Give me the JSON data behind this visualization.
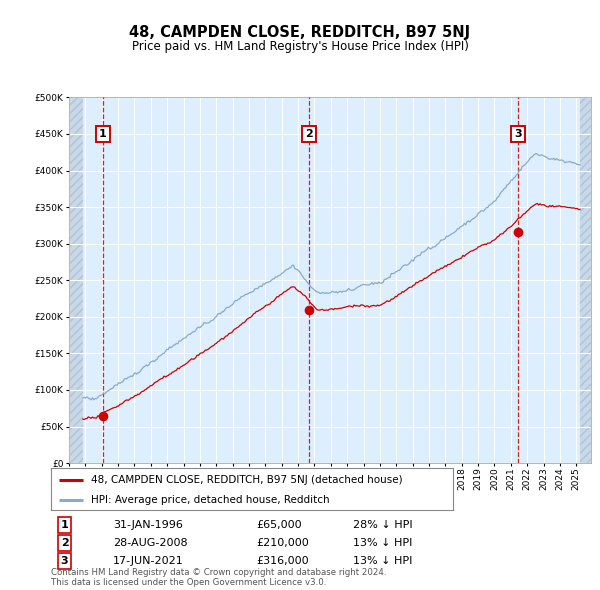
{
  "title": "48, CAMPDEN CLOSE, REDDITCH, B97 5NJ",
  "subtitle": "Price paid vs. HM Land Registry's House Price Index (HPI)",
  "property_label": "48, CAMPDEN CLOSE, REDDITCH, B97 5NJ (detached house)",
  "hpi_label": "HPI: Average price, detached house, Redditch",
  "sale_year_floats": [
    1996.08,
    2008.65,
    2021.46
  ],
  "sale_prices": [
    65000,
    210000,
    316000
  ],
  "sale_labels": [
    "1",
    "2",
    "3"
  ],
  "sale_date_strs": [
    "31-JAN-1996",
    "28-AUG-2008",
    "17-JUN-2021"
  ],
  "sale_price_strs": [
    "£65,000",
    "£210,000",
    "£316,000"
  ],
  "sale_hpi_strs": [
    "28% ↓ HPI",
    "13% ↓ HPI",
    "13% ↓ HPI"
  ],
  "ylim": [
    0,
    500000
  ],
  "yticks": [
    0,
    50000,
    100000,
    150000,
    200000,
    250000,
    300000,
    350000,
    400000,
    450000,
    500000
  ],
  "xlim_start": 1994.0,
  "xlim_end": 2025.9,
  "hatch_left_end": 1994.83,
  "hatch_right_start": 2025.25,
  "property_line_color": "#cc0000",
  "hpi_line_color": "#88aacc",
  "sale_marker_color": "#cc0000",
  "vline_color": "#cc0000",
  "bg_color": "#ddeeff",
  "footnote": "Contains HM Land Registry data © Crown copyright and database right 2024.\nThis data is licensed under the Open Government Licence v3.0."
}
